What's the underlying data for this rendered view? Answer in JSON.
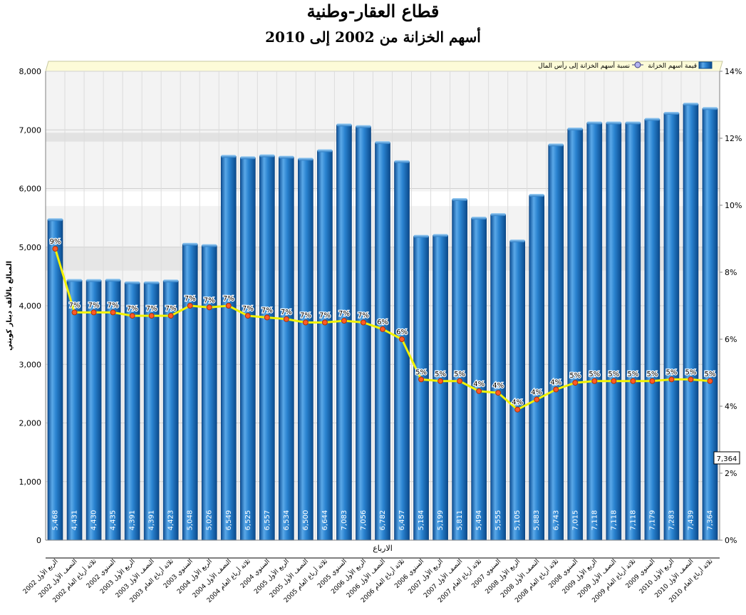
{
  "chart_data": {
    "type": "bar",
    "title": "قطاع العقار-وطنية",
    "subtitle": "أسهم الخزانة من 2002 إلى 2010",
    "xlabel": "الارباع",
    "ylabel": "المبالغ بالألف دينار كويتي",
    "ylim": [
      0,
      8000
    ],
    "y2lim": [
      0,
      14
    ],
    "yticks": [
      "0",
      "1,000",
      "2,000",
      "3,000",
      "4,000",
      "5,000",
      "6,000",
      "7,000",
      "8,000"
    ],
    "y2ticks": [
      "0%",
      "2%",
      "4%",
      "6%",
      "8%",
      "10%",
      "12%",
      "14%"
    ],
    "legend_position": "top",
    "grid": true,
    "colors": {
      "bar": "#1a72c4",
      "line": "#f2f200",
      "marker": "#ff5a28"
    },
    "categories": [
      "الربع الأول 2002",
      "النصف الأول 2002",
      "ثلاثة أرباع العام 2002",
      "السنوي 2002",
      "الربع الأول 2003",
      "النصف الأول 2003",
      "ثلاثة أرباع العام 2003",
      "السنوي 2003",
      "الربع الأول 2004",
      "النصف الأول 2004",
      "ثلاثة أرباع العام 2004",
      "السنوي 2004",
      "الربع الأول 2005",
      "النصف الأول 2005",
      "ثلاثة أرباع العام 2005",
      "السنوي 2005",
      "الربع الأول 2006",
      "النصف الأول 2006",
      "ثلاثة أرباع العام 2006",
      "السنوي 2006",
      "الربع الأول 2007",
      "النصف الأول 2007",
      "ثلاثة أرباع العام 2007",
      "السنوي 2007",
      "الربع الأول 2008",
      "النصف الأول 2008",
      "ثلاثة أرباع العام 2008",
      "السنوي 2008",
      "الربع الأول 2009",
      "النصف الأول 2009",
      "ثلاثة أرباع العام 2009",
      "السنوي 2009",
      "الربع الأول 2010",
      "النصف الأول 2010",
      "ثلاثة أرباع العام 2010"
    ],
    "series": [
      {
        "name": "قيمة أسهم الخزانة",
        "type": "bar",
        "axis": "left",
        "values": [
          5468,
          4431,
          4430,
          4435,
          4391,
          4391,
          4423,
          5048,
          5026,
          6549,
          6525,
          6557,
          6534,
          6500,
          6644,
          7083,
          7056,
          6782,
          6457,
          5184,
          5199,
          5811,
          5494,
          5555,
          5105,
          5883,
          6743,
          7015,
          7118,
          7118,
          7118,
          7179,
          7283,
          7439,
          7364
        ],
        "labels": [
          "5,468",
          "4,431",
          "4,430",
          "4,435",
          "4,391",
          "4,391",
          "4,423",
          "5,048",
          "5,026",
          "6,549",
          "6,525",
          "6,557",
          "6,534",
          "6,500",
          "6,644",
          "7,083",
          "7,056",
          "6,782",
          "6,457",
          "5,184",
          "5,199",
          "5,811",
          "5,494",
          "5,555",
          "5,105",
          "5,883",
          "6,743",
          "7,015",
          "7,118",
          "7,118",
          "7,118",
          "7,179",
          "7,283",
          "7,439",
          "7,364"
        ]
      },
      {
        "name": "نسبة أسهم الخزانة إلى رأس المال",
        "type": "line",
        "axis": "right",
        "values": [
          8.7,
          6.8,
          6.8,
          6.8,
          6.7,
          6.7,
          6.7,
          7.0,
          6.95,
          7.0,
          6.7,
          6.65,
          6.6,
          6.5,
          6.5,
          6.55,
          6.5,
          6.3,
          6.0,
          4.8,
          4.75,
          4.75,
          4.45,
          4.4,
          3.9,
          4.2,
          4.5,
          4.7,
          4.75,
          4.75,
          4.75,
          4.75,
          4.8,
          4.8,
          4.75
        ],
        "labels": [
          "9%",
          "7%",
          "7%",
          "7%",
          "7%",
          "7%",
          "7%",
          "7%",
          "7%",
          "7%",
          "7%",
          "7%",
          "7%",
          "7%",
          "7%",
          "7%",
          "7%",
          "6%",
          "6%",
          "5%",
          "5%",
          "5%",
          "4%",
          "4%",
          "4%",
          "4%",
          "4%",
          "5%",
          "5%",
          "5%",
          "5%",
          "5%",
          "5%",
          "5%",
          "5%"
        ]
      }
    ],
    "callout": "7,364"
  }
}
